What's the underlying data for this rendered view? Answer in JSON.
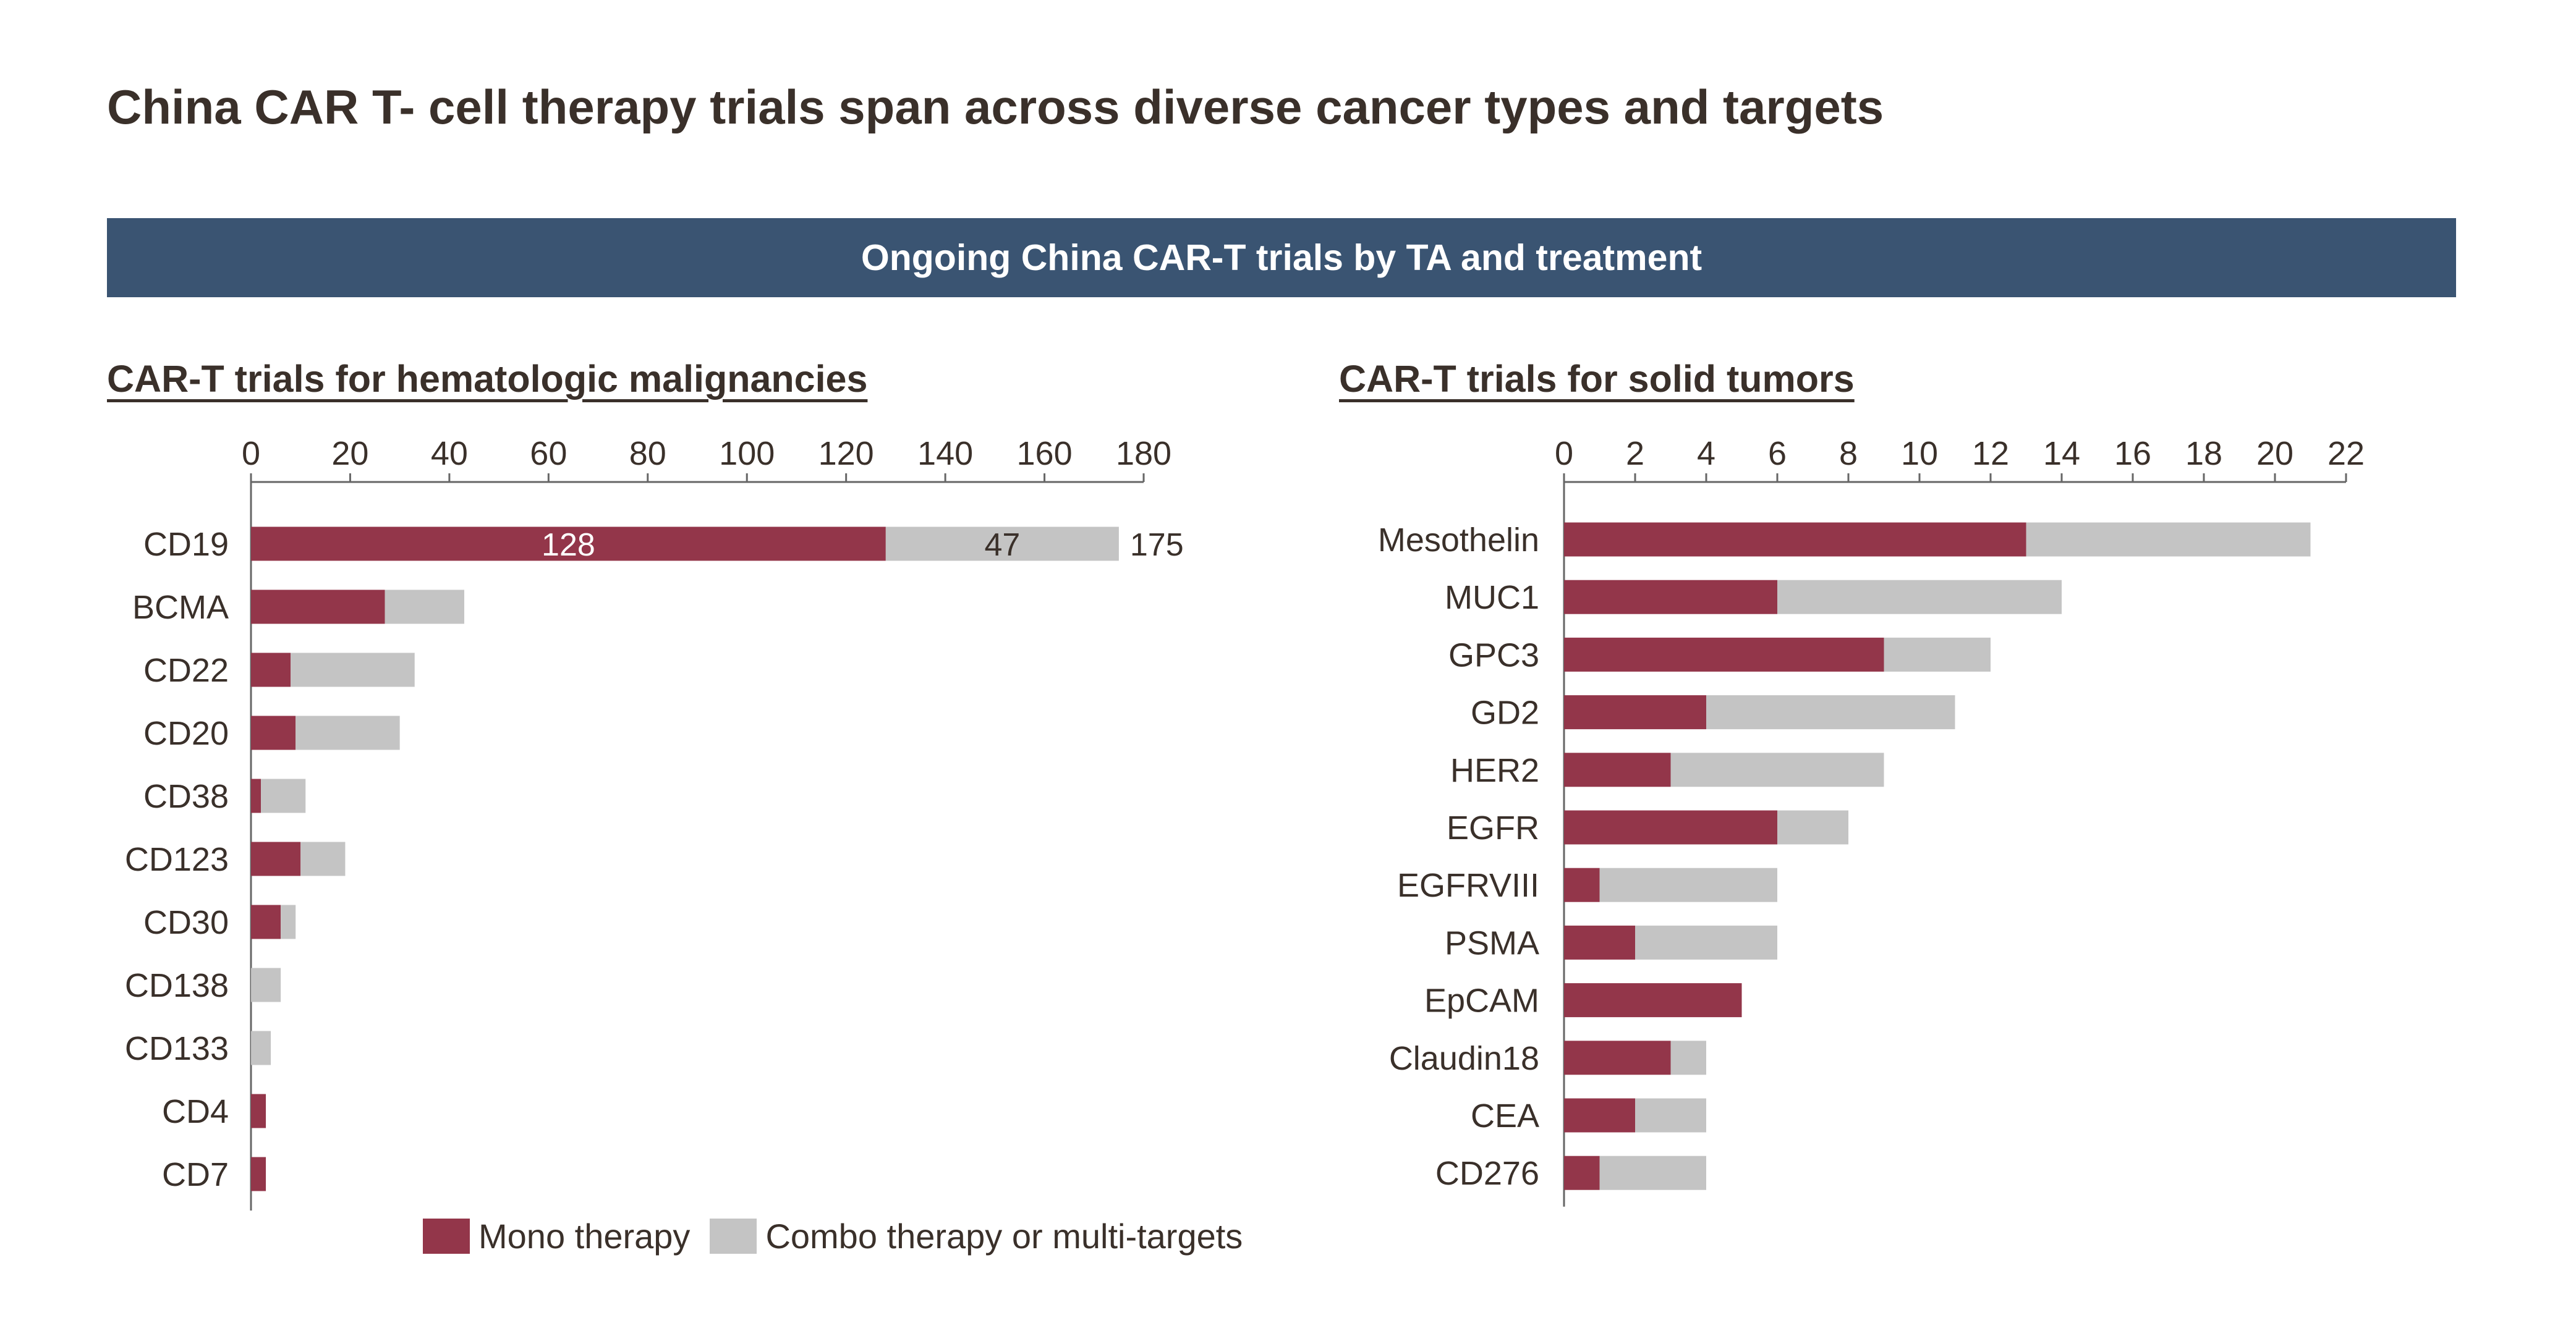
{
  "title": "China CAR T- cell therapy trials span across diverse cancer types and targets",
  "banner": "Ongoing China CAR-T trials by TA and treatment",
  "colors": {
    "banner": "#3a5472",
    "mono": "#93364a",
    "combo": "#c4c4c4",
    "axis": "#666666",
    "text": "#3a302a"
  },
  "legend": {
    "mono": "Mono therapy",
    "combo": "Combo therapy or multi-targets"
  },
  "chart_data": [
    {
      "type": "bar",
      "orientation": "horizontal",
      "stacked": true,
      "title": "CAR-T trials for hematologic malignancies",
      "categories": [
        "CD19",
        "BCMA",
        "CD22",
        "CD20",
        "CD38",
        "CD123",
        "CD30",
        "CD138",
        "CD133",
        "CD4",
        "CD7"
      ],
      "series": [
        {
          "name": "Mono therapy",
          "values": [
            128,
            27,
            8,
            9,
            2,
            10,
            6,
            0,
            0,
            3,
            3
          ]
        },
        {
          "name": "Combo therapy or multi-targets",
          "values": [
            47,
            16,
            25,
            21,
            9,
            9,
            3,
            6,
            4,
            0,
            0
          ]
        }
      ],
      "data_labels": {
        "CD19": {
          "mono": "128",
          "combo": "47",
          "total": "175"
        }
      },
      "xlim": [
        0,
        180
      ],
      "xticks": [
        0,
        20,
        40,
        60,
        80,
        100,
        120,
        140,
        160,
        180
      ],
      "axis_position": "top",
      "legend_position": "bottom"
    },
    {
      "type": "bar",
      "orientation": "horizontal",
      "stacked": true,
      "title": "CAR-T trials for solid tumors",
      "categories": [
        "Mesothelin",
        "MUC1",
        "GPC3",
        "GD2",
        "HER2",
        "EGFR",
        "EGFRVIII",
        "PSMA",
        "EpCAM",
        "Claudin18",
        "CEA",
        "CD276"
      ],
      "series": [
        {
          "name": "Mono therapy",
          "values": [
            13,
            6,
            9,
            4,
            3,
            6,
            1,
            2,
            5,
            3,
            2,
            1
          ]
        },
        {
          "name": "Combo therapy or multi-targets",
          "values": [
            8,
            8,
            3,
            7,
            6,
            2,
            5,
            4,
            0,
            1,
            2,
            3
          ]
        }
      ],
      "xlim": [
        0,
        22
      ],
      "xticks": [
        0,
        2,
        4,
        6,
        8,
        10,
        12,
        14,
        16,
        18,
        20,
        22
      ],
      "axis_position": "top"
    }
  ]
}
